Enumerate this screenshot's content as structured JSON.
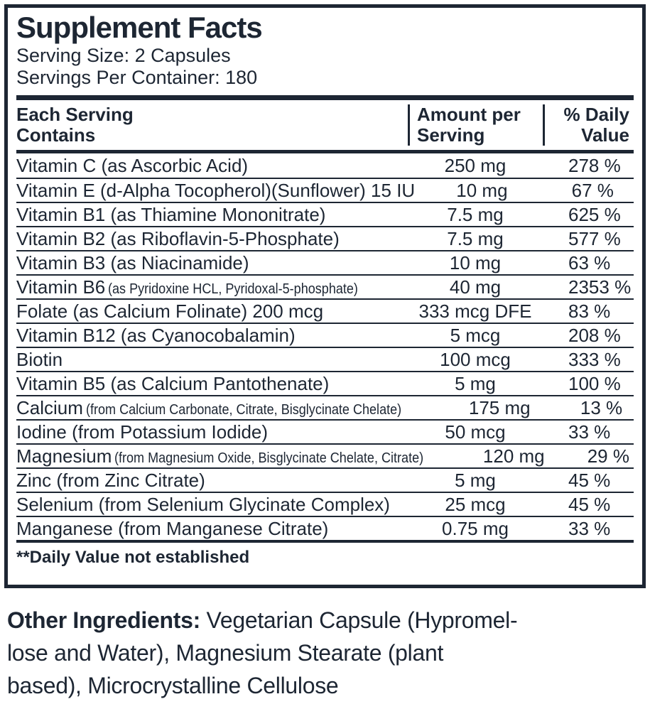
{
  "colors": {
    "ink": "#1d2633",
    "background": "#ffffff"
  },
  "label": {
    "title": "Supplement Facts",
    "serving_size": "Serving Size: 2 Capsules",
    "servings_per_container": "Servings Per Container: 180",
    "columns": {
      "col1_line1": "Each Serving",
      "col1_line2": "Contains",
      "col2_line1": "Amount per",
      "col2_line2": "Serving",
      "col3_line1": "% Daily",
      "col3_line2": "Value"
    },
    "rows": [
      {
        "name": "Vitamin C (as Ascorbic Acid)",
        "name_small": "",
        "amount": "250 mg",
        "daily_value": "278 %"
      },
      {
        "name": "Vitamin E (d-Alpha Tocopherol)(Sunflower) 15 IU",
        "name_small": "",
        "amount": "10 mg",
        "daily_value": "67 %"
      },
      {
        "name": "Vitamin B1 (as Thiamine Mononitrate)",
        "name_small": "",
        "amount": "7.5 mg",
        "daily_value": "625 %"
      },
      {
        "name": "Vitamin B2 (as Riboflavin-5-Phosphate)",
        "name_small": "",
        "amount": "7.5 mg",
        "daily_value": "577 %"
      },
      {
        "name": "Vitamin B3 (as Niacinamide)",
        "name_small": "",
        "amount": "10 mg",
        "daily_value": "63 %"
      },
      {
        "name": "Vitamin B6",
        "name_small": "(as Pyridoxine HCL, Pyridoxal-5-phosphate)",
        "amount": "40 mg",
        "daily_value": "2353 %"
      },
      {
        "name": "Folate (as Calcium Folinate) 200 mcg",
        "name_small": "",
        "amount": "333 mcg DFE",
        "daily_value": "83 %"
      },
      {
        "name": "Vitamin B12 (as Cyanocobalamin)",
        "name_small": "",
        "amount": "5 mcg",
        "daily_value": "208 %"
      },
      {
        "name": "Biotin",
        "name_small": "",
        "amount": "100 mcg",
        "daily_value": "333 %"
      },
      {
        "name": "Vitamin B5 (as Calcium Pantothenate)",
        "name_small": "",
        "amount": "5 mg",
        "daily_value": "100 %"
      },
      {
        "name": "Calcium",
        "name_small": "(from Calcium Carbonate, Citrate, Bisglycinate Chelate)",
        "amount": "175 mg",
        "daily_value": "13 %"
      },
      {
        "name": "Iodine (from Potassium Iodide)",
        "name_small": "",
        "amount": "50 mcg",
        "daily_value": "33 %"
      },
      {
        "name": "Magnesium",
        "name_small": "(from Magnesium Oxide, Bisglycinate Chelate, Citrate)",
        "amount": "120 mg",
        "daily_value": "29 %"
      },
      {
        "name": "Zinc (from Zinc Citrate)",
        "name_small": "",
        "amount": "5 mg",
        "daily_value": "45 %"
      },
      {
        "name": "Selenium (from Selenium Glycinate Complex)",
        "name_small": "",
        "amount": "25 mcg",
        "daily_value": "45 %"
      },
      {
        "name": "Manganese (from Manganese Citrate)",
        "name_small": "",
        "amount": "0.75 mg",
        "daily_value": "33 %"
      }
    ],
    "footnote": "**Daily Value not established"
  },
  "other_ingredients": {
    "heading": "Other Ingredients:",
    "line1_rest": " Vegetarian Capsule (Hypromel-",
    "line2": "lose and Water), Magnesium Stearate (plant",
    "line3": "based), Microcrystalline Cellulose"
  }
}
